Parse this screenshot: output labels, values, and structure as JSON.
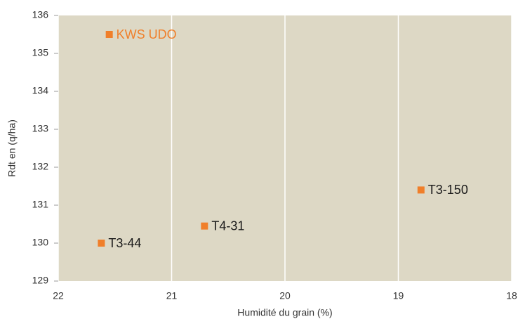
{
  "chart_data": {
    "type": "scatter",
    "x_label": "Humidité du grain (%)",
    "y_label": "Rdt en (q/ha)",
    "point_labels": [
      "KWS UDO",
      "T3-44",
      "T4-31",
      "T3-150"
    ],
    "x": [
      21.55,
      21.62,
      20.71,
      18.8
    ],
    "values": [
      135.5,
      130.0,
      130.45,
      131.4
    ],
    "color": "#f07f2a",
    "label_colors": [
      "#f07f2a",
      "#1a1a1a",
      "#1a1a1a",
      "#1a1a1a"
    ],
    "xlim": [
      22,
      18
    ],
    "xticks": [
      22,
      21,
      20,
      19,
      18
    ],
    "ylim": [
      129,
      136
    ],
    "yticks": [
      129,
      130,
      131,
      132,
      133,
      134,
      135,
      136
    ],
    "grid": true,
    "background": "#ddd8c5"
  }
}
